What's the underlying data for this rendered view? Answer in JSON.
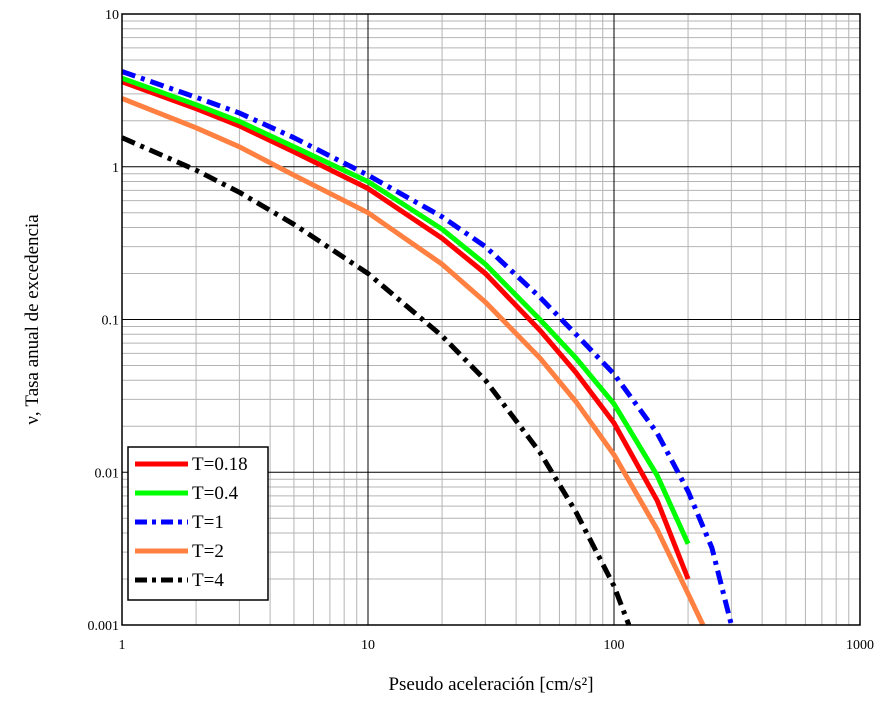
{
  "chart_data": {
    "type": "line",
    "xlabel": "Pseudo aceleración [cm/s²]",
    "ylabel": "ν, Tasa anual de excedencia",
    "x_scale": "log",
    "y_scale": "log",
    "xlim": [
      1,
      1000
    ],
    "ylim": [
      0.001,
      10
    ],
    "x_ticks": [
      {
        "value": 1,
        "label": "1"
      },
      {
        "value": 10,
        "label": "10"
      },
      {
        "value": 100,
        "label": "100"
      },
      {
        "value": 1000,
        "label": "1000"
      }
    ],
    "y_ticks": [
      {
        "value": 10,
        "label": "10"
      },
      {
        "value": 1,
        "label": "1"
      },
      {
        "value": 0.1,
        "label": "0.1"
      },
      {
        "value": 0.01,
        "label": "0.01"
      },
      {
        "value": 0.001,
        "label": "0.001"
      }
    ],
    "grid": true,
    "legend_position": "bottom-left",
    "series": [
      {
        "name": "T=0.18",
        "color": "#ff0000",
        "dash": "solid",
        "x": [
          1,
          2,
          3,
          5,
          10,
          20,
          30,
          50,
          70,
          100,
          150,
          200
        ],
        "y": [
          3.6,
          2.4,
          1.85,
          1.25,
          0.72,
          0.34,
          0.2,
          0.085,
          0.045,
          0.021,
          0.0065,
          0.002
        ]
      },
      {
        "name": "T=0.4",
        "color": "#00ff00",
        "dash": "solid",
        "x": [
          1,
          2,
          3,
          5,
          10,
          20,
          30,
          50,
          70,
          100,
          150,
          200
        ],
        "y": [
          3.8,
          2.55,
          1.98,
          1.35,
          0.8,
          0.39,
          0.23,
          0.1,
          0.056,
          0.028,
          0.0095,
          0.0034
        ]
      },
      {
        "name": "T=1",
        "color": "#0000ff",
        "dash": "dashdot",
        "x": [
          1,
          2,
          3,
          5,
          10,
          20,
          30,
          50,
          70,
          100,
          150,
          200,
          250,
          300
        ],
        "y": [
          4.2,
          2.85,
          2.25,
          1.55,
          0.88,
          0.47,
          0.3,
          0.14,
          0.08,
          0.044,
          0.018,
          0.0075,
          0.0032,
          0.001
        ]
      },
      {
        "name": "T=2",
        "color": "#ff8040",
        "dash": "solid",
        "x": [
          1,
          2,
          3,
          5,
          10,
          20,
          30,
          50,
          70,
          100,
          150,
          200,
          230
        ],
        "y": [
          2.8,
          1.8,
          1.35,
          0.88,
          0.5,
          0.23,
          0.13,
          0.056,
          0.029,
          0.013,
          0.0042,
          0.0016,
          0.001
        ]
      },
      {
        "name": "T=4",
        "color": "#000000",
        "dash": "dashdot",
        "x": [
          1,
          2,
          3,
          5,
          10,
          20,
          30,
          50,
          70,
          100,
          115
        ],
        "y": [
          1.55,
          0.95,
          0.68,
          0.42,
          0.2,
          0.078,
          0.04,
          0.0135,
          0.0055,
          0.0018,
          0.001
        ]
      }
    ]
  }
}
